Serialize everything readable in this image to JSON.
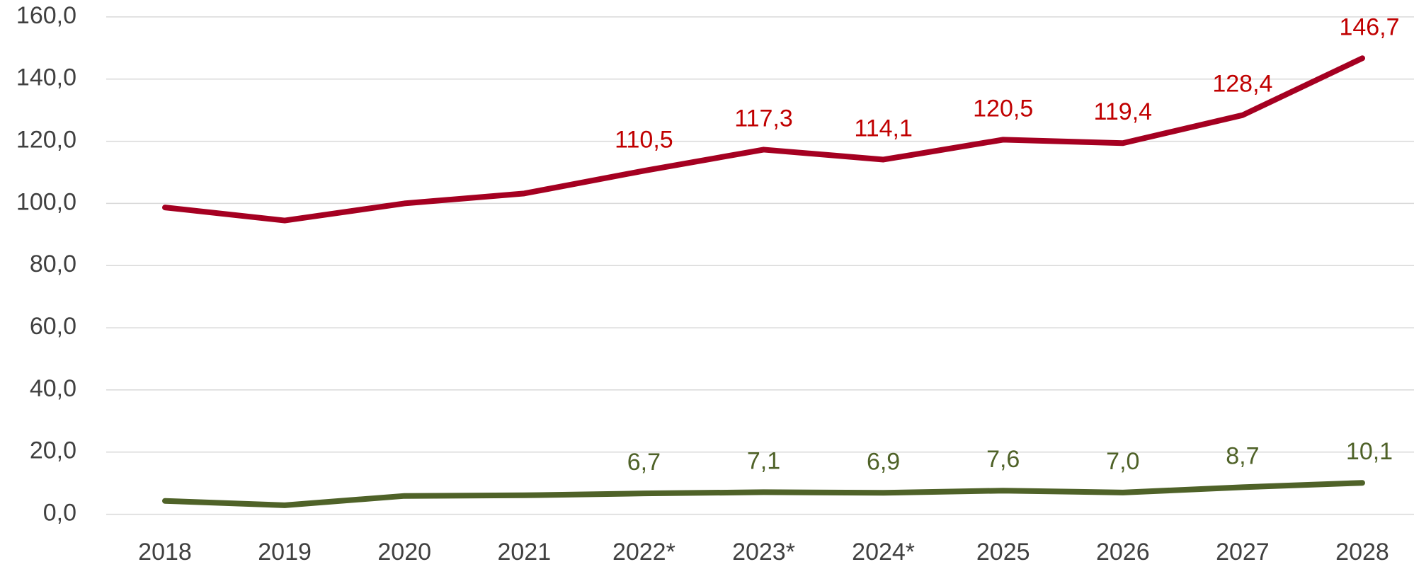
{
  "chart_data": {
    "type": "line",
    "categories": [
      "2018",
      "2019",
      "2020",
      "2021",
      "2022*",
      "2023*",
      "2024*",
      "2025",
      "2026",
      "2027",
      "2028"
    ],
    "series": [
      {
        "color": "#a50021",
        "label_color": "#c00000",
        "values": [
          98.7,
          94.5,
          100.0,
          103.2,
          110.5,
          117.3,
          114.1,
          120.5,
          119.4,
          128.4,
          146.7
        ],
        "value_labels": [
          null,
          null,
          null,
          null,
          "110,5",
          "117,3",
          "114,1",
          "120,5",
          "119,4",
          "128,4",
          "146,7"
        ]
      },
      {
        "color": "#4f6228",
        "label_color": "#4f6228",
        "values": [
          4.3,
          2.9,
          5.9,
          6.1,
          6.7,
          7.1,
          6.9,
          7.6,
          7.0,
          8.7,
          10.1
        ],
        "value_labels": [
          null,
          null,
          null,
          null,
          "6,7",
          "7,1",
          "6,9",
          "7,6",
          "7,0",
          "8,7",
          "10,1"
        ]
      }
    ],
    "ylim": [
      0,
      160
    ],
    "yticks": [
      {
        "value": 0,
        "label": "0,0"
      },
      {
        "value": 20,
        "label": "20,0"
      },
      {
        "value": 40,
        "label": "40,0"
      },
      {
        "value": 60,
        "label": "60,0"
      },
      {
        "value": 80,
        "label": "80,0"
      },
      {
        "value": 100,
        "label": "100,0"
      },
      {
        "value": 120,
        "label": "120,0"
      },
      {
        "value": 140,
        "label": "140,0"
      },
      {
        "value": 160,
        "label": "160,0"
      }
    ],
    "grid": true
  }
}
